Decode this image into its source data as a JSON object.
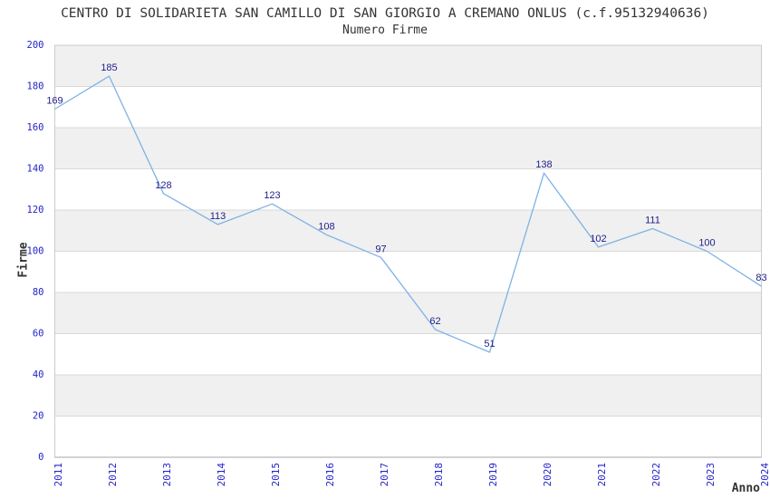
{
  "chart_data": {
    "type": "line",
    "title": "CENTRO DI SOLIDARIETA SAN CAMILLO DI SAN GIORGIO A CREMANO ONLUS (c.f.95132940636)",
    "subtitle": "Numero Firme",
    "xlabel": "Anno",
    "ylabel": "Firme",
    "categories": [
      "2011",
      "2012",
      "2013",
      "2014",
      "2015",
      "2016",
      "2017",
      "2018",
      "2019",
      "2020",
      "2021",
      "2022",
      "2023",
      "2024"
    ],
    "values": [
      169,
      185,
      128,
      113,
      123,
      108,
      97,
      62,
      51,
      138,
      102,
      111,
      100,
      83
    ],
    "ylim": [
      0,
      200
    ],
    "ytick_step": 20,
    "legend": "none",
    "grid": "horizontal gridlines every 20 with alternating gray bands",
    "point_labels_visible": true,
    "colors": {
      "line": "#7fb2e5",
      "point_label": "#1c1c8c",
      "tick_label": "#2323cc",
      "text": "#333333",
      "band": "#f0f0f0",
      "gridline": "#d9d9d9",
      "border": "#cccccc",
      "axis_line": "#a6a6a6",
      "background": "#ffffff"
    }
  }
}
